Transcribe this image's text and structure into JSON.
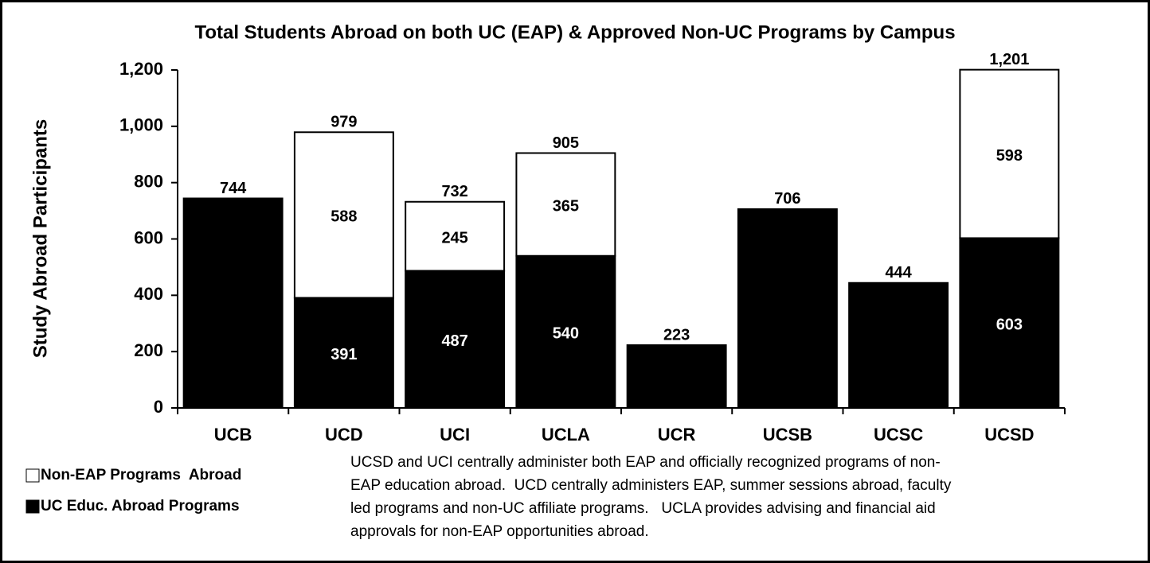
{
  "chart_data": {
    "type": "stacked_bar",
    "title": "Total Students Abroad on both UC (EAP) & Approved Non-UC Programs by Campus",
    "y_label": "Study Abroad Participants",
    "categories": [
      "UCB",
      "UCD",
      "UCI",
      "UCLA",
      "UCR",
      "UCSB",
      "UCSC",
      "UCSD"
    ],
    "series": [
      {
        "name": "UC Educ. Abroad Programs",
        "color": "#000000",
        "values": [
          744,
          391,
          487,
          540,
          223,
          706,
          444,
          603
        ]
      },
      {
        "name": "Non-EAP Programs  Abroad",
        "color": "#ffffff",
        "values": [
          null,
          588,
          245,
          365,
          null,
          null,
          null,
          598
        ]
      }
    ],
    "totals": [
      744,
      979,
      732,
      905,
      223,
      706,
      444,
      1201
    ],
    "totals_labels": [
      "744",
      "979",
      "732",
      "905",
      "223",
      "706",
      "444",
      "1,201"
    ],
    "ylim": [
      0,
      1200
    ],
    "yticks": [
      0,
      200,
      400,
      600,
      800,
      {
        "value": 1000,
        "label": "1,000"
      },
      {
        "value": 1200,
        "label": "1,200"
      }
    ],
    "legend": "bottom-left",
    "note": [
      "UCSD and UCI centrally administer both EAP and officially recognized programs of non-",
      "EAP education abroad.  UCD centrally administers EAP, summer sessions abroad, faculty",
      "led programs and non-UC affiliate programs.   UCLA provides advising and financial aid",
      "approvals for non-EAP opportunities abroad."
    ]
  }
}
